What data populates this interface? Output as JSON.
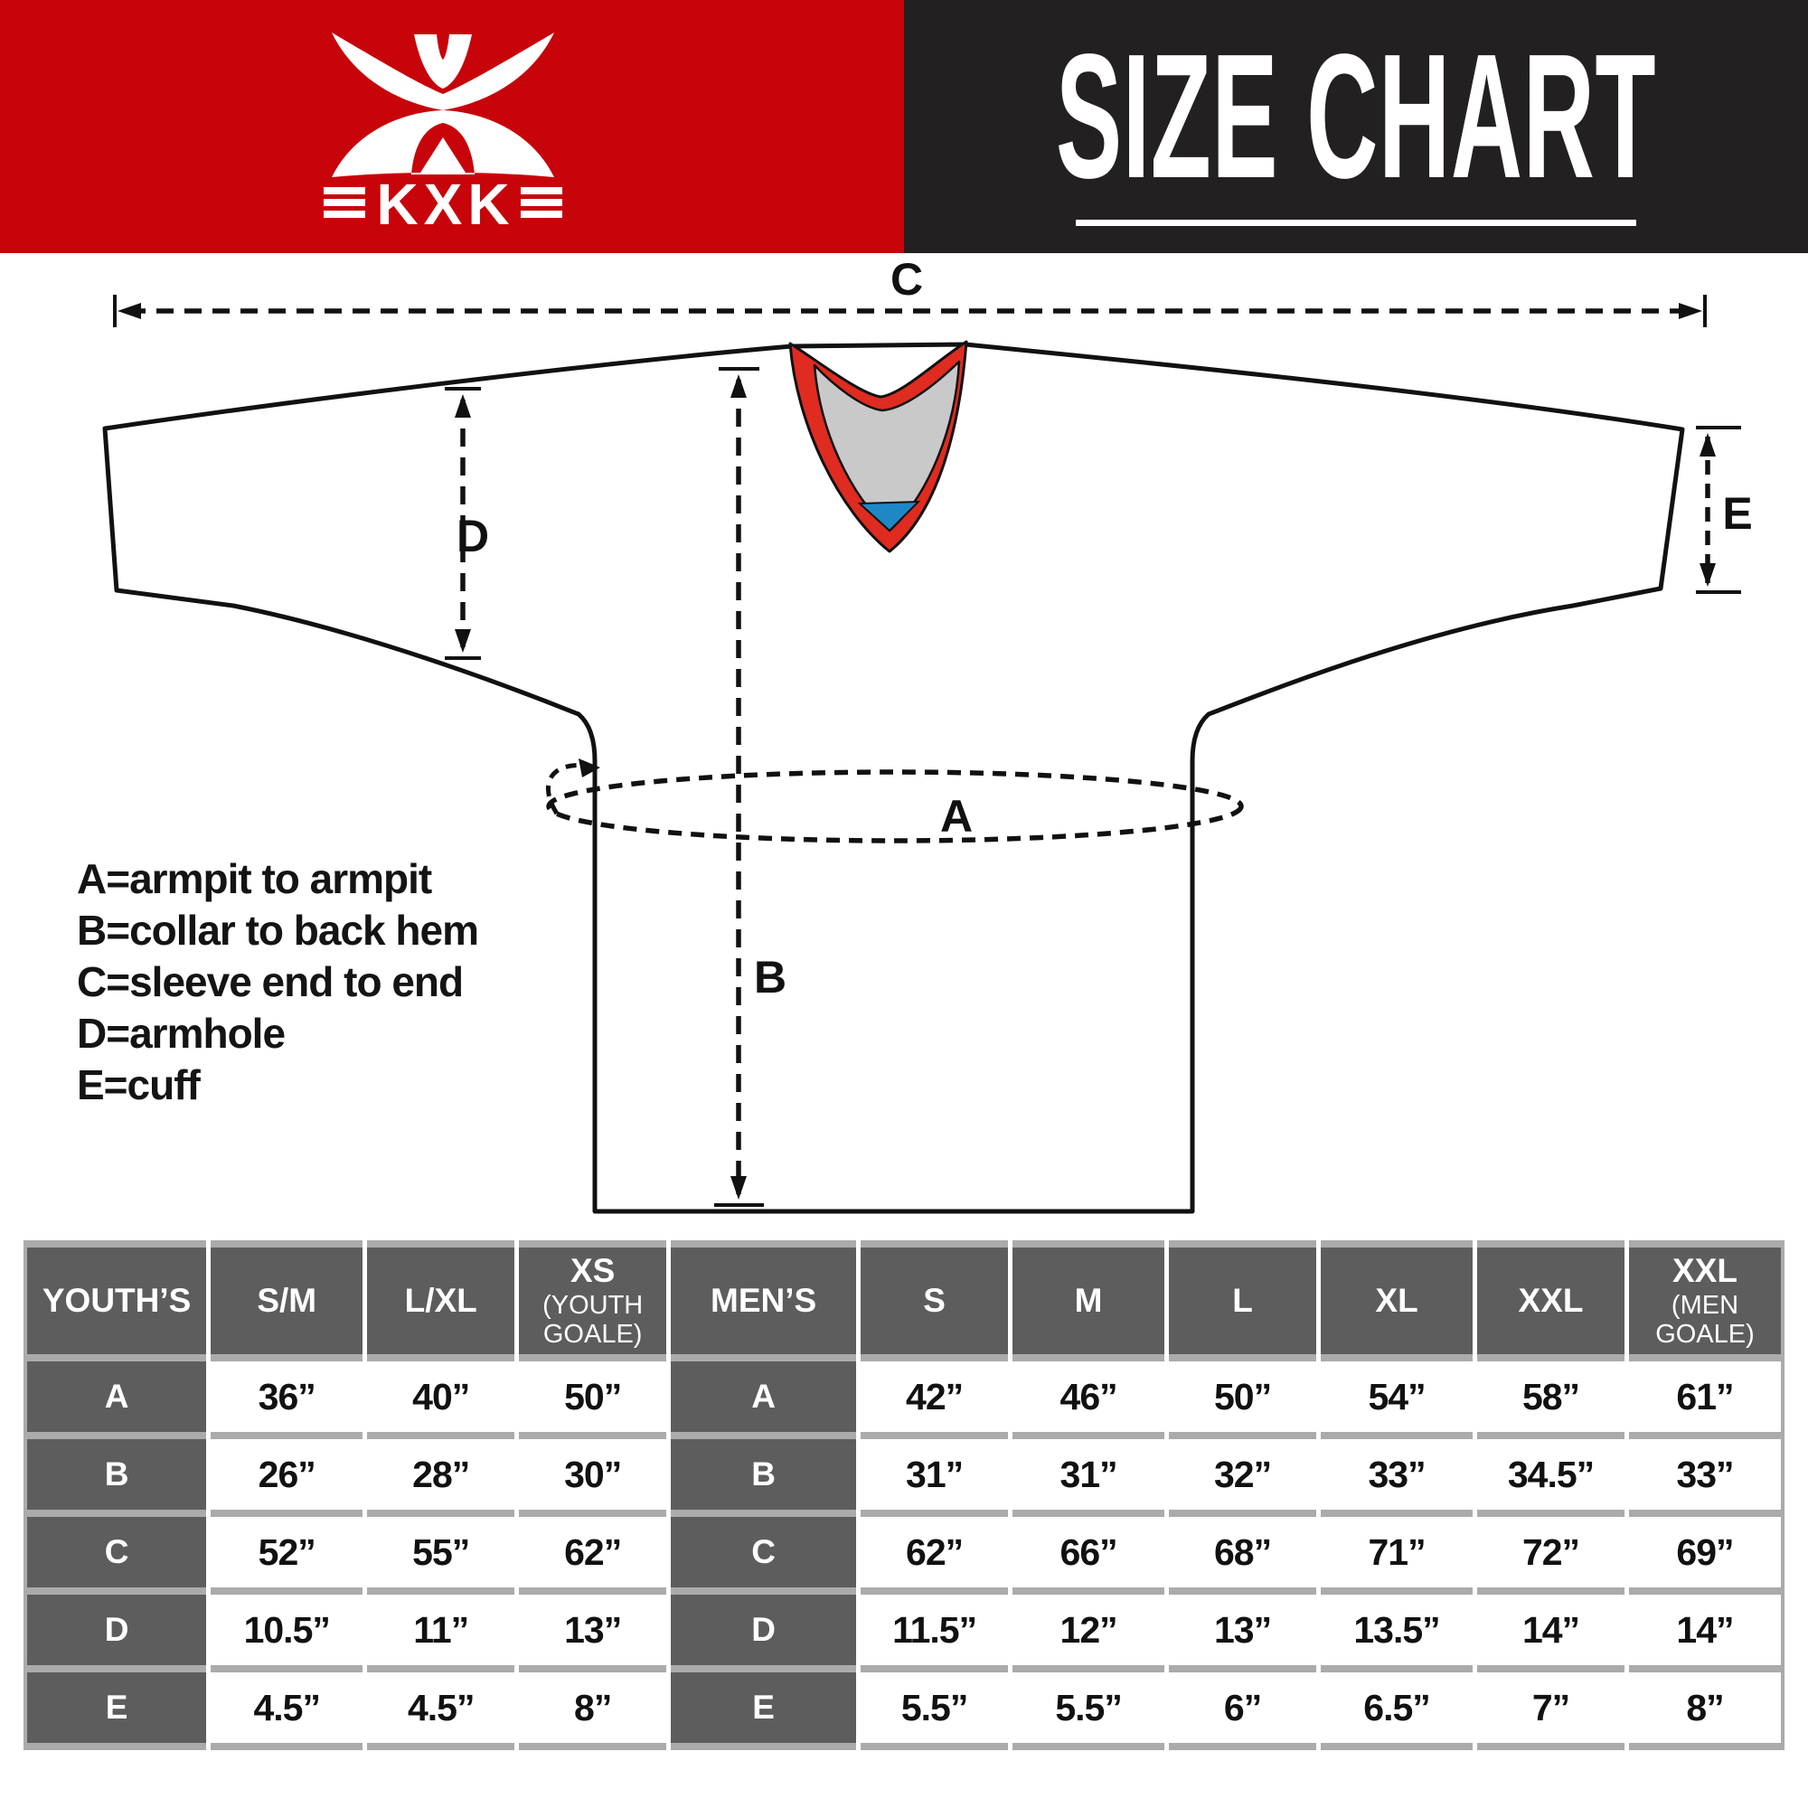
{
  "banner": {
    "brand": "KXK",
    "title": "SIZE CHART",
    "red": "#c7040a",
    "black": "#232021"
  },
  "diagram": {
    "labels": {
      "a": "A",
      "b": "B",
      "c": "C",
      "d": "D",
      "e": "E"
    },
    "legend": [
      "A=armpit to armpit",
      "B=collar to back hem",
      "C=sleeve end to end",
      "D=armhole",
      "E=cuff"
    ],
    "collar_colors": {
      "red": "#df2b20",
      "gray": "#c9c9c9",
      "blue": "#1e88c7"
    }
  },
  "table": {
    "row_labels": [
      "A",
      "B",
      "C",
      "D",
      "E"
    ],
    "youth": {
      "label": "YOUTH’S",
      "columns": [
        {
          "main": "S/M",
          "sub": ""
        },
        {
          "main": "L/XL",
          "sub": ""
        },
        {
          "main": "XS",
          "sub": "(YOUTH GOALE)"
        }
      ],
      "rows": [
        [
          "36”",
          "40”",
          "50”"
        ],
        [
          "26”",
          "28”",
          "30”"
        ],
        [
          "52”",
          "55”",
          "62”"
        ],
        [
          "10.5”",
          "11”",
          "13”"
        ],
        [
          "4.5”",
          "4.5”",
          "8”"
        ]
      ]
    },
    "men": {
      "label": "MEN’S",
      "columns": [
        {
          "main": "S",
          "sub": ""
        },
        {
          "main": "M",
          "sub": ""
        },
        {
          "main": "L",
          "sub": ""
        },
        {
          "main": "XL",
          "sub": ""
        },
        {
          "main": "XXL",
          "sub": ""
        },
        {
          "main": "XXL",
          "sub": "(MEN GOALE)"
        }
      ],
      "rows": [
        [
          "42”",
          "46”",
          "50”",
          "54”",
          "58”",
          "61”"
        ],
        [
          "31”",
          "31”",
          "32”",
          "33”",
          "34.5”",
          "33”"
        ],
        [
          "62”",
          "66”",
          "68”",
          "71”",
          "72”",
          "69”"
        ],
        [
          "11.5”",
          "12”",
          "13”",
          "13.5”",
          "14”",
          "14”"
        ],
        [
          "5.5”",
          "5.5”",
          "6”",
          "6.5”",
          "7”",
          "8”"
        ]
      ]
    }
  }
}
